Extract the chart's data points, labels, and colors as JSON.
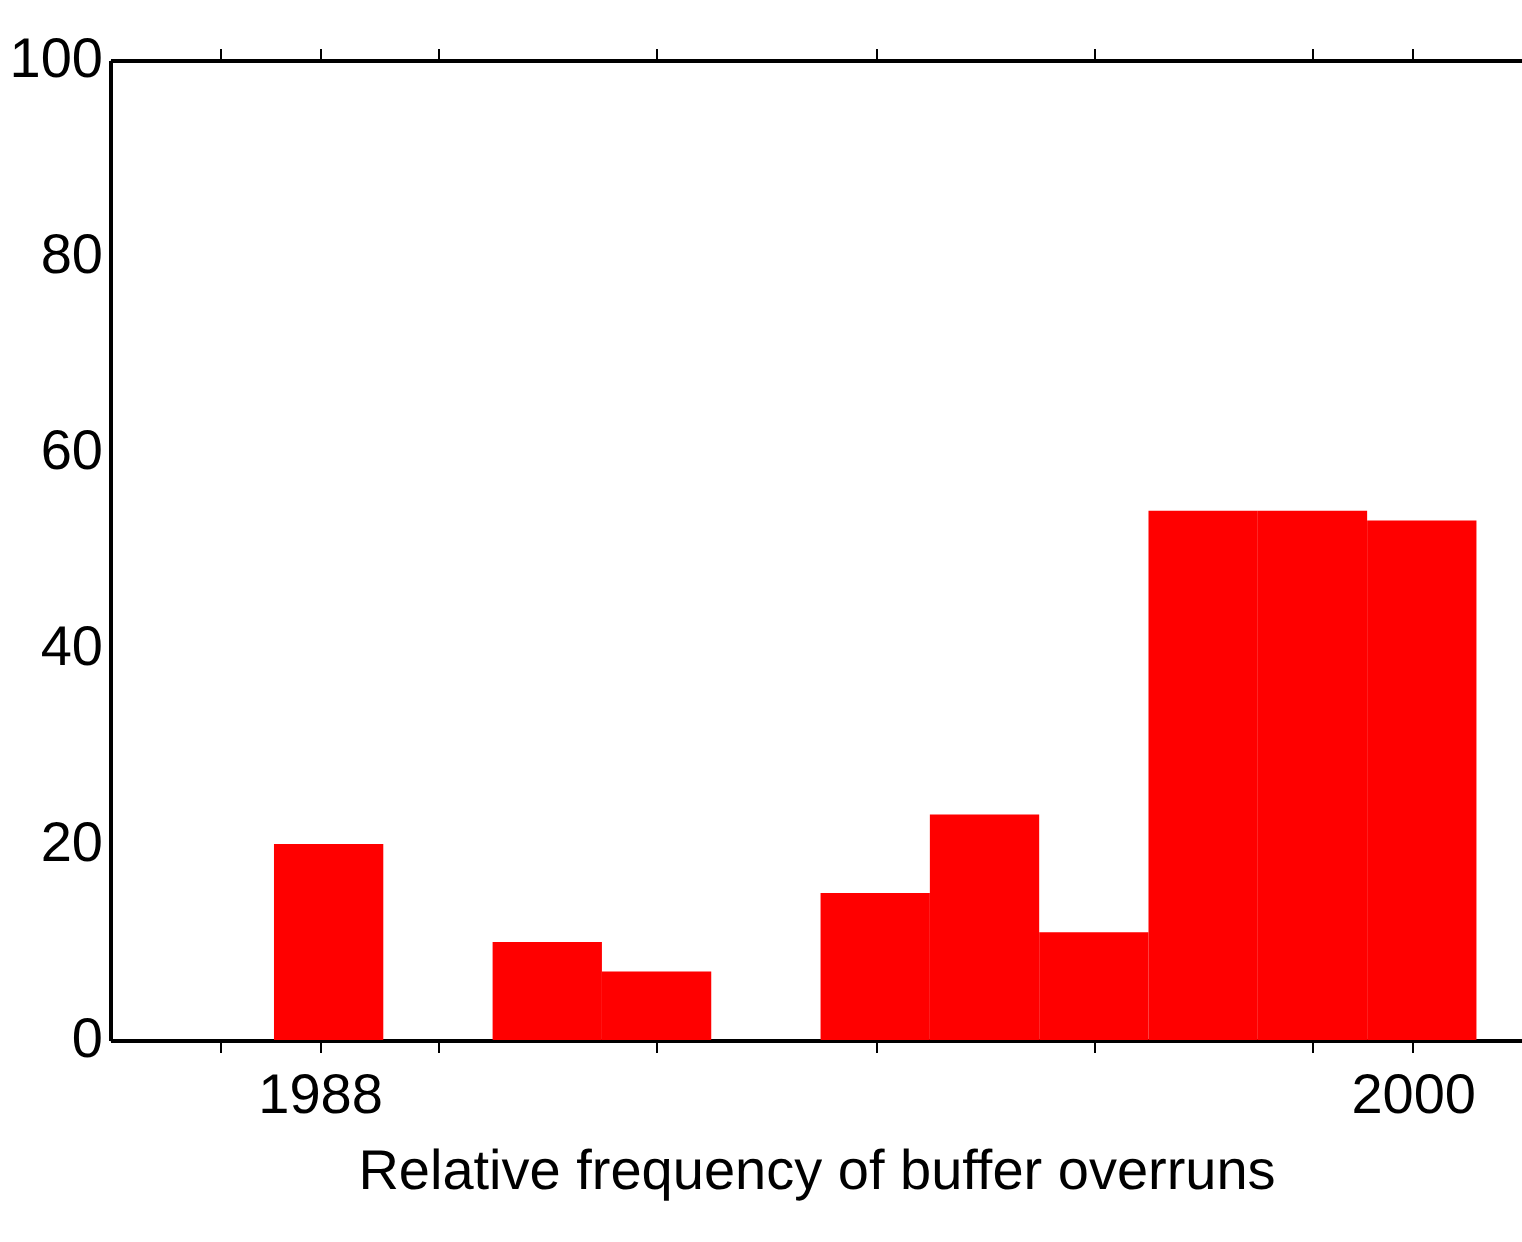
{
  "chart_data": {
    "type": "histogram",
    "xlabel": "Relative frequency of buffer overruns",
    "bins": [
      1986.3,
      1987.5,
      1988.7,
      1989.9,
      1991.1,
      1992.3,
      1993.5,
      1994.7,
      1995.9,
      1997.1,
      1998.3,
      1999.5,
      2000.7
    ],
    "values": [
      0,
      20,
      0,
      10,
      7,
      0,
      15,
      23,
      11,
      54,
      54,
      53
    ],
    "color": "#ff0000",
    "xlim": [
      1985.7,
      2001.2
    ],
    "xticks": [
      {
        "value": 1986.9,
        "label": null
      },
      {
        "value": 1988,
        "label": "1988"
      },
      {
        "value": 1989.3,
        "label": null
      },
      {
        "value": 1991.7,
        "label": null
      },
      {
        "value": 1994.1,
        "label": null
      },
      {
        "value": 1996.5,
        "label": null
      },
      {
        "value": 1998.9,
        "label": null
      },
      {
        "value": 2000,
        "label": "2000"
      }
    ],
    "ylim": [
      0,
      100
    ],
    "yticks": [
      0,
      20,
      40,
      60,
      80,
      100
    ]
  }
}
